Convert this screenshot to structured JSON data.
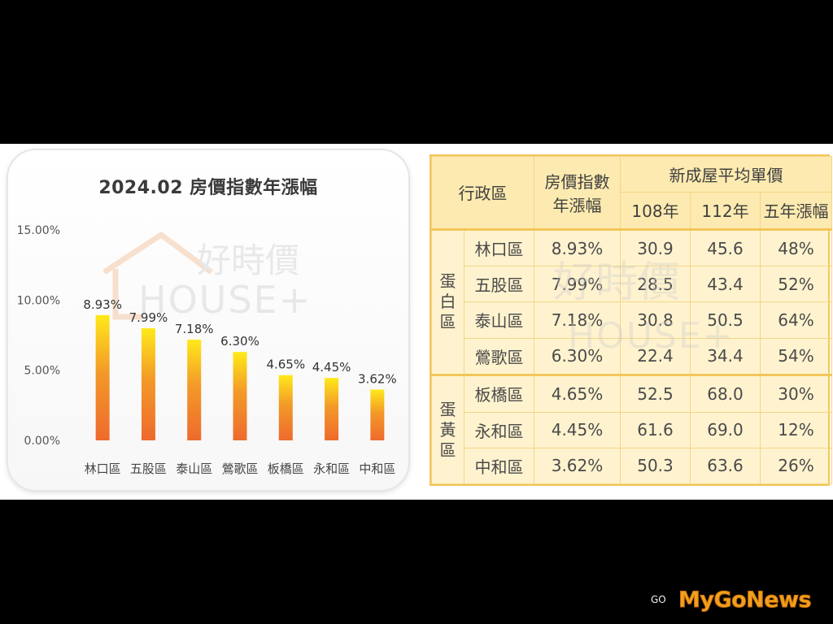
{
  "chart_data": {
    "type": "bar",
    "title": "2024.02 房價指數年漲幅",
    "categories": [
      "林口區",
      "五股區",
      "泰山區",
      "鶯歌區",
      "板橋區",
      "永和區",
      "中和區"
    ],
    "values": [
      8.93,
      7.99,
      7.18,
      6.3,
      4.65,
      4.45,
      3.62
    ],
    "value_labels": [
      "8.93%",
      "7.99%",
      "7.18%",
      "6.30%",
      "4.65%",
      "4.45%",
      "3.62%"
    ],
    "ylim": [
      0,
      15
    ],
    "yticks": [
      0,
      5,
      10,
      15
    ],
    "ytick_labels": [
      "0.00%",
      "5.00%",
      "10.00%",
      "15.00%"
    ],
    "xlabel": "",
    "ylabel": "",
    "grid": false,
    "bar_gradient": [
      "#ffe91a",
      "#f08a2a",
      "#ee6a2d"
    ]
  },
  "watermark": {
    "brand_cn": "好時價",
    "brand_en": "HOUSE+"
  },
  "table": {
    "headers": {
      "district": "行政區",
      "index_line1": "房價指數",
      "index_line2": "年漲幅",
      "new_price": "新成屋平均單價",
      "y108": "108年",
      "y112": "112年",
      "five_year": "五年漲幅"
    },
    "groups": [
      {
        "label_chars": [
          "蛋",
          "白",
          "區"
        ],
        "rows": [
          {
            "district": "林口區",
            "index": "8.93%",
            "y108": "30.9",
            "y112": "45.6",
            "five": "48%"
          },
          {
            "district": "五股區",
            "index": "7.99%",
            "y108": "28.5",
            "y112": "43.4",
            "five": "52%"
          },
          {
            "district": "泰山區",
            "index": "7.18%",
            "y108": "30.8",
            "y112": "50.5",
            "five": "64%"
          },
          {
            "district": "鶯歌區",
            "index": "6.30%",
            "y108": "22.4",
            "y112": "34.4",
            "five": "54%"
          }
        ]
      },
      {
        "label_chars": [
          "蛋",
          "黃",
          "區"
        ],
        "rows": [
          {
            "district": "板橋區",
            "index": "4.65%",
            "y108": "52.5",
            "y112": "68.0",
            "five": "30%"
          },
          {
            "district": "永和區",
            "index": "4.45%",
            "y108": "61.6",
            "y112": "69.0",
            "five": "12%"
          },
          {
            "district": "中和區",
            "index": "3.62%",
            "y108": "50.3",
            "y112": "63.6",
            "five": "26%"
          }
        ]
      }
    ]
  },
  "logo": {
    "text": "MyGoNews",
    "mark": "GO"
  },
  "colors": {
    "table_border": "#f2c65a",
    "table_bg": "#fff3cf",
    "logo": "#f0a021"
  }
}
